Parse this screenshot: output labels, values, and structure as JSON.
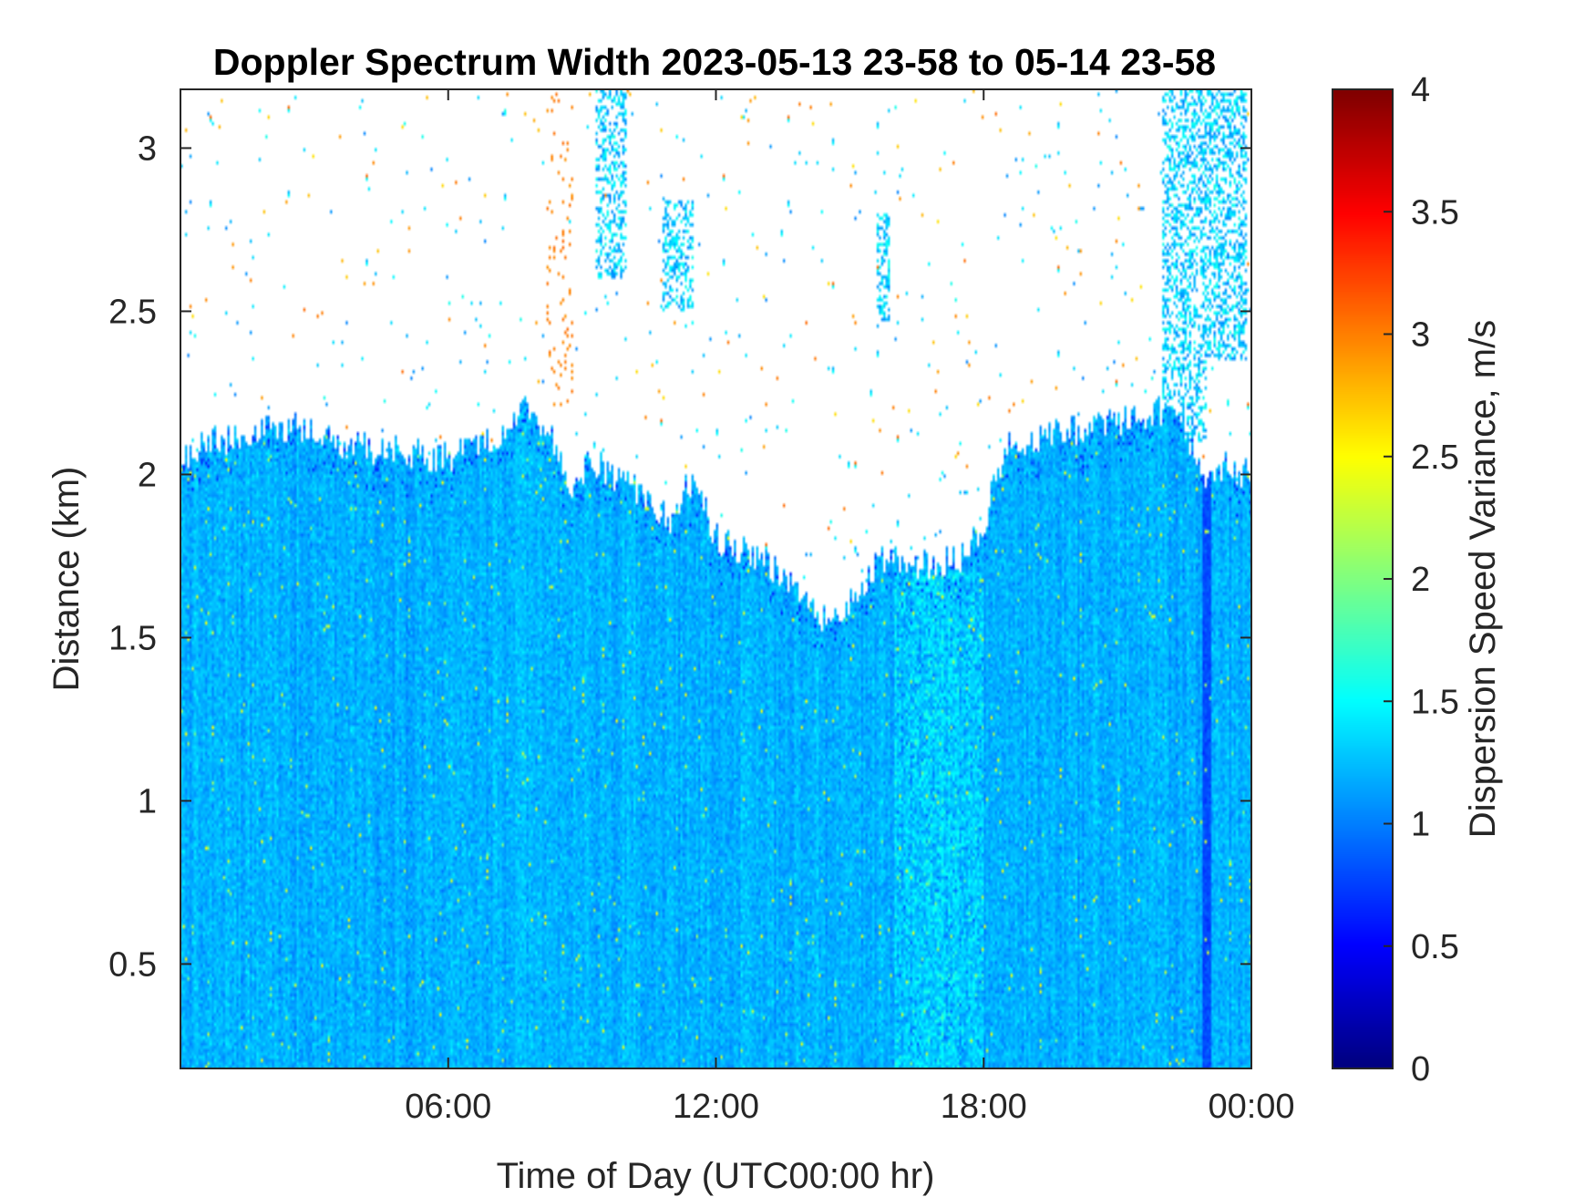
{
  "chart_data": {
    "type": "heatmap",
    "title": "Doppler Spectrum Width 2023-05-13 23-58 to 05-14 23-58",
    "xlabel": "Time of Day (UTC00:00 hr)",
    "ylabel": "Distance (km)",
    "xlim_hours": [
      0,
      24
    ],
    "ylim": [
      0.18,
      3.18
    ],
    "x_ticks": [
      {
        "value": 6,
        "label": "06:00"
      },
      {
        "value": 12,
        "label": "12:00"
      },
      {
        "value": 18,
        "label": "18:00"
      },
      {
        "value": 24,
        "label": "00:00"
      }
    ],
    "y_ticks": [
      {
        "value": 0.5,
        "label": "0.5"
      },
      {
        "value": 1,
        "label": "1"
      },
      {
        "value": 1.5,
        "label": "1.5"
      },
      {
        "value": 2,
        "label": "2"
      },
      {
        "value": 2.5,
        "label": "2.5"
      },
      {
        "value": 3,
        "label": "3"
      }
    ],
    "colorbar": {
      "label": "Dispersion Speed Variance, m/s",
      "colormap": "jet",
      "clim": [
        0,
        4
      ],
      "ticks": [
        {
          "value": 0,
          "label": "0"
        },
        {
          "value": 0.5,
          "label": "0.5"
        },
        {
          "value": 1,
          "label": "1"
        },
        {
          "value": 1.5,
          "label": "1.5"
        },
        {
          "value": 2,
          "label": "2"
        },
        {
          "value": 2.5,
          "label": "2.5"
        },
        {
          "value": 3,
          "label": "3"
        },
        {
          "value": 3.5,
          "label": "3.5"
        },
        {
          "value": 4,
          "label": "4"
        }
      ]
    },
    "typical_value": 1.2,
    "signal_top_km": [
      [
        0,
        2.05
      ],
      [
        0.5,
        2.1
      ],
      [
        1.5,
        2.12
      ],
      [
        2.5,
        2.15
      ],
      [
        3.5,
        2.1
      ],
      [
        4.5,
        2.07
      ],
      [
        6,
        2.05
      ],
      [
        7,
        2.1
      ],
      [
        7.8,
        2.2
      ],
      [
        8.3,
        2.12
      ],
      [
        8.7,
        1.95
      ],
      [
        9.2,
        2.05
      ],
      [
        10.2,
        1.95
      ],
      [
        11,
        1.85
      ],
      [
        11.5,
        2.0
      ],
      [
        12,
        1.8
      ],
      [
        13,
        1.75
      ],
      [
        13.8,
        1.65
      ],
      [
        14.4,
        1.55
      ],
      [
        15,
        1.6
      ],
      [
        15.8,
        1.75
      ],
      [
        16.5,
        1.72
      ],
      [
        17.5,
        1.75
      ],
      [
        18,
        1.85
      ],
      [
        18.5,
        2.1
      ],
      [
        19.5,
        2.12
      ],
      [
        20.5,
        2.15
      ],
      [
        21.5,
        2.18
      ],
      [
        22.3,
        2.2
      ],
      [
        23,
        2.0
      ],
      [
        23.5,
        2.02
      ],
      [
        24,
        2.0
      ]
    ],
    "mid_day_dip_max_km": 1.3,
    "high_signal_plumes": [
      {
        "x_range": [
          22.0,
          23.0
        ],
        "y_range": [
          2.1,
          3.18
        ]
      },
      {
        "x_range": [
          23.0,
          23.9
        ],
        "y_range": [
          2.35,
          3.18
        ]
      },
      {
        "x_range": [
          9.3,
          10.0
        ],
        "y_range": [
          2.6,
          3.18
        ]
      },
      {
        "x_range": [
          10.8,
          11.5
        ],
        "y_range": [
          2.5,
          2.85
        ]
      },
      {
        "x_range": [
          15.6,
          15.9
        ],
        "y_range": [
          2.45,
          2.8
        ]
      }
    ],
    "orange_streaks": [
      {
        "x_range": [
          8.2,
          8.8
        ],
        "y_range": [
          2.2,
          3.18
        ],
        "value": 3.0
      }
    ],
    "elevated_band": {
      "x_range": [
        16.0,
        18.0
      ],
      "y_range": [
        0.18,
        1.7
      ],
      "value": 1.5
    },
    "low_value_column": {
      "x_range": [
        22.9,
        23.1
      ],
      "y_range": [
        0.18,
        2.0
      ],
      "value": 0.8
    }
  }
}
